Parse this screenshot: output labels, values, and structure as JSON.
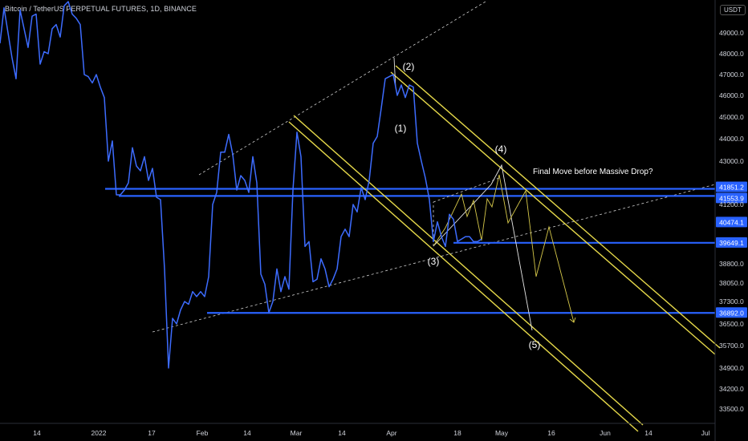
{
  "header": {
    "symbol_title": "Bitcoin / TetherUS PERPETUAL FUTURES, 1D, BINANCE",
    "currency": "USDT"
  },
  "colors": {
    "background": "#000000",
    "price_line": "#3d6cff",
    "level_line": "#2962ff",
    "channel": "#e6d94a",
    "projection": "#d7c94a",
    "dashed": "#cfcfcf",
    "badge": "#2962ff"
  },
  "chart_data": {
    "type": "line",
    "title": "",
    "x_ticks": [
      "14",
      "2022",
      "17",
      "Feb",
      "14",
      "Mar",
      "14",
      "Apr",
      "18",
      "May",
      "16",
      "Jun",
      "14",
      "Jul"
    ],
    "y_ticks": [
      49000.0,
      48000.0,
      47000.0,
      46000.0,
      45000.0,
      44000.0,
      43000.0,
      41200.0,
      38800.0,
      38050.0,
      37300.0,
      36500.0,
      35700.0,
      34900.0,
      34200.0,
      33500.0
    ],
    "price_labels": [
      {
        "text": "41851.2",
        "value": 41851.2
      },
      {
        "text": "41553.9",
        "value": 41553.9
      },
      {
        "text": "40474.1",
        "value": 40474.1
      },
      {
        "text": "39649.1",
        "value": 39649.1
      },
      {
        "text": "36892.0",
        "value": 36892.0
      }
    ],
    "horizontal_levels": [
      41851.2,
      41553.9,
      39649.1,
      36892.0
    ],
    "wave_labels": [
      "(1)",
      "(2)",
      "(3)",
      "(4)",
      "(5)"
    ],
    "annotation": "Final Move before Massive Drop?",
    "series": [
      {
        "kind": "price",
        "values": [
          [
            0,
            48500
          ],
          [
            5,
            50200
          ],
          [
            10,
            49000
          ],
          [
            15,
            47800
          ],
          [
            20,
            46800
          ],
          [
            25,
            50100
          ],
          [
            30,
            49200
          ],
          [
            35,
            48300
          ],
          [
            40,
            49800
          ],
          [
            45,
            49900
          ],
          [
            50,
            47500
          ],
          [
            55,
            48100
          ],
          [
            60,
            48000
          ],
          [
            65,
            49200
          ],
          [
            70,
            49400
          ],
          [
            75,
            48800
          ],
          [
            80,
            50300
          ],
          [
            85,
            50500
          ],
          [
            90,
            49900
          ],
          [
            95,
            49700
          ],
          [
            100,
            49400
          ],
          [
            105,
            47000
          ],
          [
            110,
            46900
          ],
          [
            115,
            46600
          ],
          [
            120,
            47000
          ],
          [
            125,
            46400
          ],
          [
            130,
            45900
          ],
          [
            135,
            43000
          ],
          [
            140,
            43900
          ],
          [
            145,
            41600
          ],
          [
            150,
            41600
          ],
          [
            155,
            41800
          ],
          [
            160,
            42100
          ],
          [
            165,
            43600
          ],
          [
            170,
            42800
          ],
          [
            175,
            42600
          ],
          [
            180,
            43200
          ],
          [
            185,
            42200
          ],
          [
            190,
            42700
          ],
          [
            195,
            41500
          ],
          [
            200,
            41400
          ],
          [
            205,
            38600
          ],
          [
            210,
            34900
          ],
          [
            215,
            36700
          ],
          [
            220,
            36500
          ],
          [
            225,
            37000
          ],
          [
            230,
            37300
          ],
          [
            235,
            37200
          ],
          [
            240,
            37700
          ],
          [
            245,
            37500
          ],
          [
            250,
            37700
          ],
          [
            255,
            37500
          ],
          [
            260,
            38300
          ],
          [
            265,
            41200
          ],
          [
            270,
            41700
          ],
          [
            275,
            43400
          ],
          [
            280,
            43400
          ],
          [
            285,
            44200
          ],
          [
            290,
            43300
          ],
          [
            295,
            41800
          ],
          [
            300,
            42400
          ],
          [
            305,
            42200
          ],
          [
            310,
            41700
          ],
          [
            315,
            43200
          ],
          [
            320,
            42100
          ],
          [
            325,
            38400
          ],
          [
            330,
            38000
          ],
          [
            335,
            36900
          ],
          [
            340,
            37300
          ],
          [
            345,
            38600
          ],
          [
            350,
            37700
          ],
          [
            355,
            38300
          ],
          [
            360,
            37800
          ],
          [
            365,
            41800
          ],
          [
            370,
            44300
          ],
          [
            375,
            43200
          ],
          [
            380,
            39500
          ],
          [
            385,
            39700
          ],
          [
            390,
            38100
          ],
          [
            395,
            38200
          ],
          [
            400,
            39000
          ],
          [
            405,
            38600
          ],
          [
            410,
            37900
          ],
          [
            415,
            38200
          ],
          [
            420,
            38600
          ],
          [
            425,
            39900
          ],
          [
            430,
            40200
          ],
          [
            435,
            39900
          ],
          [
            440,
            41200
          ],
          [
            445,
            40900
          ],
          [
            450,
            41900
          ],
          [
            455,
            41400
          ],
          [
            460,
            42200
          ],
          [
            465,
            43800
          ],
          [
            470,
            44100
          ],
          [
            475,
            45400
          ],
          [
            480,
            46800
          ],
          [
            485,
            46900
          ],
          [
            490,
            47000
          ],
          [
            495,
            46000
          ],
          [
            500,
            46500
          ],
          [
            505,
            45900
          ],
          [
            510,
            46500
          ],
          [
            515,
            46400
          ],
          [
            520,
            43800
          ],
          [
            525,
            43000
          ],
          [
            530,
            42300
          ],
          [
            535,
            41400
          ],
          [
            540,
            39700
          ],
          [
            545,
            40500
          ],
          [
            550,
            39900
          ],
          [
            555,
            39500
          ],
          [
            560,
            40800
          ],
          [
            565,
            40600
          ],
          [
            570,
            39700
          ],
          [
            575,
            39800
          ],
          [
            580,
            39900
          ],
          [
            585,
            39900
          ],
          [
            590,
            39700
          ],
          [
            595,
            39700
          ],
          [
            600,
            39800
          ]
        ]
      }
    ]
  }
}
